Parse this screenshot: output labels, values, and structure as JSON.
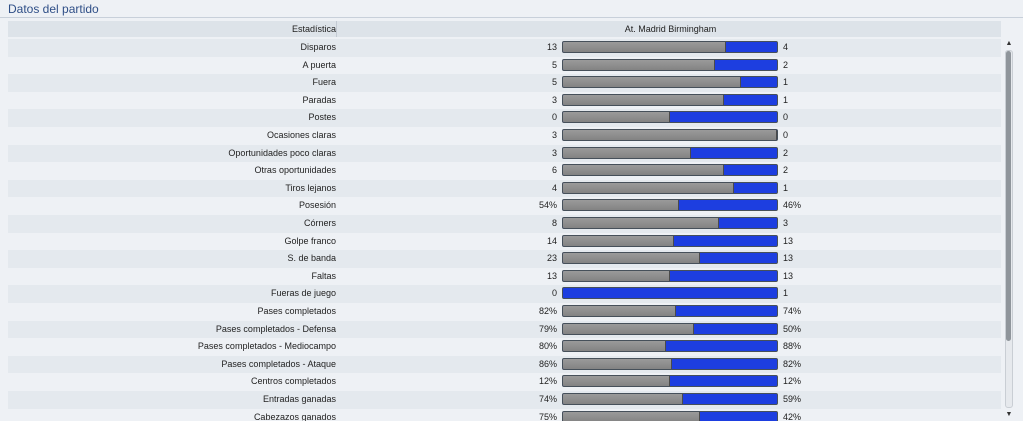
{
  "panel": {
    "title": "Datos del partido"
  },
  "table": {
    "header": {
      "label_column": "Estadística",
      "teams": "At. Madrid  Birmingham"
    },
    "rows": [
      {
        "label": "Disparos",
        "home": "13",
        "away": "4",
        "home_share": 0.76
      },
      {
        "label": "A puerta",
        "home": "5",
        "away": "2",
        "home_share": 0.71
      },
      {
        "label": "Fuera",
        "home": "5",
        "away": "1",
        "home_share": 0.83
      },
      {
        "label": "Paradas",
        "home": "3",
        "away": "1",
        "home_share": 0.75
      },
      {
        "label": "Postes",
        "home": "0",
        "away": "0",
        "home_share": 0.5
      },
      {
        "label": "Ocasiones claras",
        "home": "3",
        "away": "0",
        "home_share": 1.0
      },
      {
        "label": "Oportunidades poco claras",
        "home": "3",
        "away": "2",
        "home_share": 0.6
      },
      {
        "label": "Otras oportunidades",
        "home": "6",
        "away": "2",
        "home_share": 0.75
      },
      {
        "label": "Tiros lejanos",
        "home": "4",
        "away": "1",
        "home_share": 0.8
      },
      {
        "label": "Posesión",
        "home": "54%",
        "away": "46%",
        "home_share": 0.54
      },
      {
        "label": "Córners",
        "home": "8",
        "away": "3",
        "home_share": 0.73
      },
      {
        "label": "Golpe franco",
        "home": "14",
        "away": "13",
        "home_share": 0.52
      },
      {
        "label": "S. de banda",
        "home": "23",
        "away": "13",
        "home_share": 0.64
      },
      {
        "label": "Faltas",
        "home": "13",
        "away": "13",
        "home_share": 0.5
      },
      {
        "label": "Fueras de juego",
        "home": "0",
        "away": "1",
        "home_share": 0.0
      },
      {
        "label": "Pases completados",
        "home": "82%",
        "away": "74%",
        "home_share": 0.53
      },
      {
        "label": "Pases completados - Defensa",
        "home": "79%",
        "away": "50%",
        "home_share": 0.61
      },
      {
        "label": "Pases completados - Mediocampo",
        "home": "80%",
        "away": "88%",
        "home_share": 0.48
      },
      {
        "label": "Pases completados - Ataque",
        "home": "86%",
        "away": "82%",
        "home_share": 0.51
      },
      {
        "label": "Centros completados",
        "home": "12%",
        "away": "12%",
        "home_share": 0.5
      },
      {
        "label": "Entradas ganadas",
        "home": "74%",
        "away": "59%",
        "home_share": 0.56
      },
      {
        "label": "Cabezazos ganados",
        "home": "75%",
        "away": "42%",
        "home_share": 0.64
      }
    ]
  },
  "colors": {
    "home_bar": "#8f8f8f",
    "away_bar": "#1d3ee0",
    "title": "#2f4f87"
  },
  "scrollbar": {
    "up_icon": "triangle-up",
    "down_icon": "triangle-down"
  }
}
